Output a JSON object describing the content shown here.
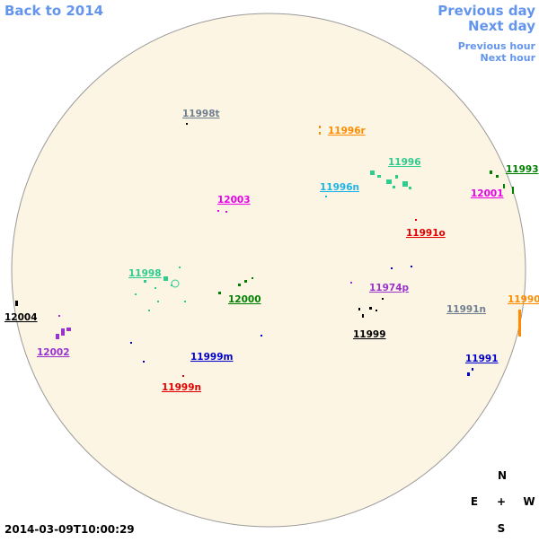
{
  "nav": {
    "back": "Back to 2014",
    "previous_day": "Previous day",
    "next_day": "Next day",
    "previous_hour": "Previous hour",
    "next_hour": "Next hour"
  },
  "regions": [
    {
      "label": "11998t"
    },
    {
      "label": "11996r"
    },
    {
      "label": "11996"
    },
    {
      "label": "11993"
    },
    {
      "label": "11996n"
    },
    {
      "label": "12001"
    },
    {
      "label": "12003"
    },
    {
      "label": "11991o"
    },
    {
      "label": "11998"
    },
    {
      "label": "12000"
    },
    {
      "label": "11974p"
    },
    {
      "label": "11991n"
    },
    {
      "label": "11990"
    },
    {
      "label": "12004"
    },
    {
      "label": "11999"
    },
    {
      "label": "12002"
    },
    {
      "label": "11999m"
    },
    {
      "label": "11991"
    },
    {
      "label": "11999n"
    }
  ],
  "compass": {
    "north": "N",
    "east": "E",
    "center": "+",
    "west": "W",
    "south": "S"
  },
  "timestamp": "2014-03-09T10:00:29"
}
